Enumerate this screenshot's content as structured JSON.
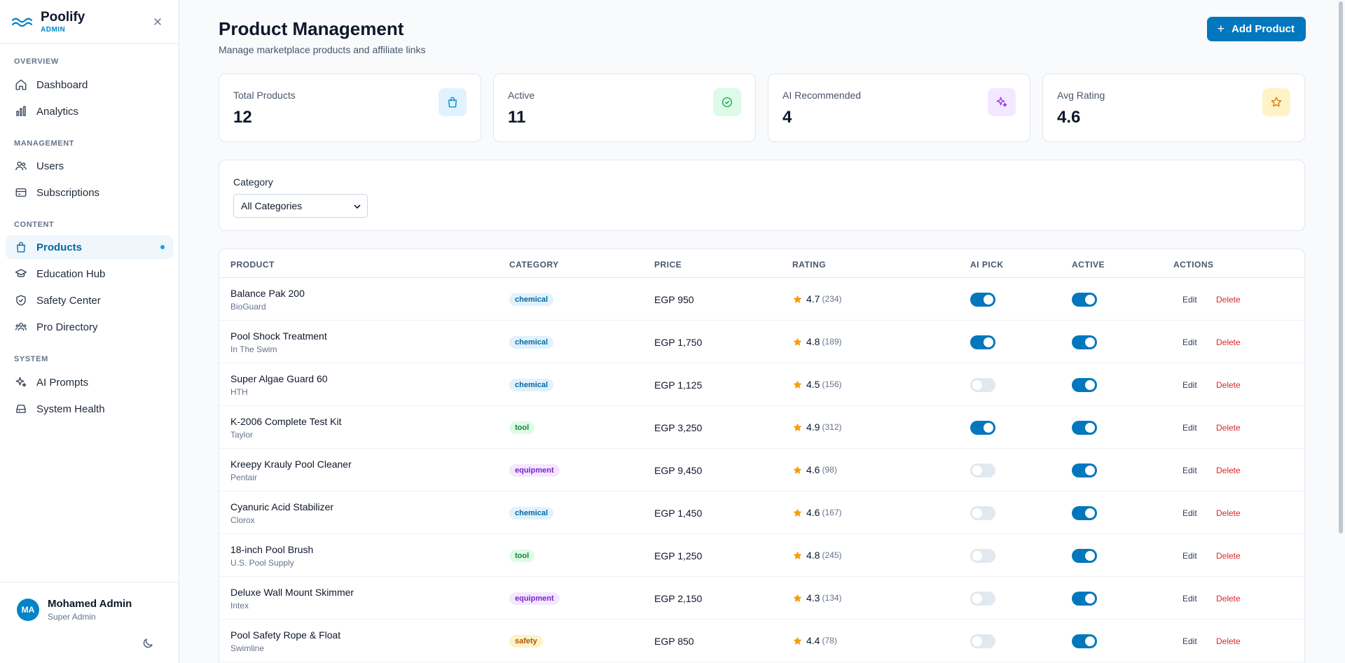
{
  "brand": {
    "name": "Poolify",
    "sub": "ADMIN"
  },
  "sidebar": {
    "sections": [
      {
        "title": "OVERVIEW",
        "items": [
          {
            "label": "Dashboard",
            "icon": "home-icon"
          },
          {
            "label": "Analytics",
            "icon": "bar-chart-icon"
          }
        ]
      },
      {
        "title": "MANAGEMENT",
        "items": [
          {
            "label": "Users",
            "icon": "users-icon"
          },
          {
            "label": "Subscriptions",
            "icon": "credit-card-icon"
          }
        ]
      },
      {
        "title": "CONTENT",
        "items": [
          {
            "label": "Products",
            "icon": "shopping-bag-icon",
            "active": true
          },
          {
            "label": "Education Hub",
            "icon": "graduation-cap-icon"
          },
          {
            "label": "Safety Center",
            "icon": "shield-check-icon"
          },
          {
            "label": "Pro Directory",
            "icon": "user-group-icon"
          }
        ]
      },
      {
        "title": "SYSTEM",
        "items": [
          {
            "label": "AI Prompts",
            "icon": "sparkles-icon"
          },
          {
            "label": "System Health",
            "icon": "server-icon"
          }
        ]
      }
    ]
  },
  "user": {
    "initials": "MA",
    "name": "Mohamed Admin",
    "role": "Super Admin"
  },
  "header": {
    "title": "Product Management",
    "subtitle": "Manage marketplace products and affiliate links",
    "add_label": "Add Product"
  },
  "stats": [
    {
      "label": "Total Products",
      "value": "12",
      "icon": "shopping-bag-icon",
      "color": "#0284c7",
      "bg": "#e0f2fe"
    },
    {
      "label": "Active",
      "value": "11",
      "icon": "check-circle-icon",
      "color": "#16a34a",
      "bg": "#dcfce7"
    },
    {
      "label": "AI Recommended",
      "value": "4",
      "icon": "sparkles-icon",
      "color": "#9333ea",
      "bg": "#f3e8ff"
    },
    {
      "label": "Avg Rating",
      "value": "4.6",
      "icon": "star-icon",
      "color": "#d97706",
      "bg": "#fef3c7"
    }
  ],
  "filter": {
    "label": "Category",
    "selected": "All Categories"
  },
  "table": {
    "headers": {
      "product": "PRODUCT",
      "category": "CATEGORY",
      "price": "PRICE",
      "rating": "RATING",
      "ai_pick": "AI PICK",
      "active": "ACTIVE",
      "actions": "ACTIONS"
    },
    "edit_label": "Edit",
    "delete_label": "Delete",
    "rows": [
      {
        "name": "Balance Pak 200",
        "brand": "BioGuard",
        "category": "chemical",
        "price": "EGP 950",
        "rating": "4.7",
        "count": "(234)",
        "ai": true,
        "active": true
      },
      {
        "name": "Pool Shock Treatment",
        "brand": "In The Swim",
        "category": "chemical",
        "price": "EGP 1,750",
        "rating": "4.8",
        "count": "(189)",
        "ai": true,
        "active": true
      },
      {
        "name": "Super Algae Guard 60",
        "brand": "HTH",
        "category": "chemical",
        "price": "EGP 1,125",
        "rating": "4.5",
        "count": "(156)",
        "ai": false,
        "active": true
      },
      {
        "name": "K-2006 Complete Test Kit",
        "brand": "Taylor",
        "category": "tool",
        "price": "EGP 3,250",
        "rating": "4.9",
        "count": "(312)",
        "ai": true,
        "active": true
      },
      {
        "name": "Kreepy Krauly Pool Cleaner",
        "brand": "Pentair",
        "category": "equipment",
        "price": "EGP 9,450",
        "rating": "4.6",
        "count": "(98)",
        "ai": false,
        "active": true
      },
      {
        "name": "Cyanuric Acid Stabilizer",
        "brand": "Clorox",
        "category": "chemical",
        "price": "EGP 1,450",
        "rating": "4.6",
        "count": "(167)",
        "ai": false,
        "active": true
      },
      {
        "name": "18-inch Pool Brush",
        "brand": "U.S. Pool Supply",
        "category": "tool",
        "price": "EGP 1,250",
        "rating": "4.8",
        "count": "(245)",
        "ai": false,
        "active": true
      },
      {
        "name": "Deluxe Wall Mount Skimmer",
        "brand": "Intex",
        "category": "equipment",
        "price": "EGP 2,150",
        "rating": "4.3",
        "count": "(134)",
        "ai": false,
        "active": true
      },
      {
        "name": "Pool Safety Rope & Float",
        "brand": "Swimline",
        "category": "safety",
        "price": "EGP 850",
        "rating": "4.4",
        "count": "(78)",
        "ai": false,
        "active": true
      }
    ]
  },
  "colors": {
    "accent": "#0277bd",
    "danger": "#dc2626",
    "star": "#f59e0b"
  }
}
